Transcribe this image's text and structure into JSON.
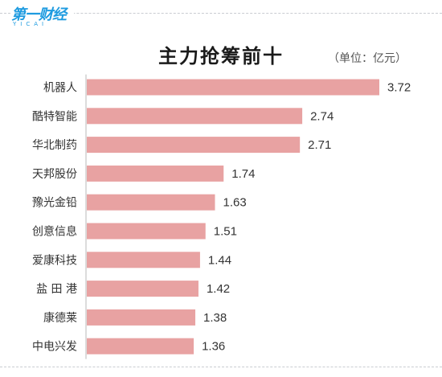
{
  "logo": {
    "mark": "第一财经",
    "sub": "YICAI"
  },
  "chart_data": {
    "type": "bar",
    "orientation": "horizontal",
    "title": "主力抢筹前十",
    "unit": "（单位：亿元）",
    "categories": [
      "机器人",
      "酷特智能",
      "华北制药",
      "天邦股份",
      "豫光金铅",
      "创意信息",
      "爱康科技",
      "盐 田 港",
      "康德莱",
      "中电兴发"
    ],
    "values": [
      3.72,
      2.74,
      2.71,
      1.74,
      1.63,
      1.51,
      1.44,
      1.42,
      1.38,
      1.36
    ],
    "value_labels": [
      "3.72",
      "2.74",
      "2.71",
      "1.74",
      "1.63",
      "1.51",
      "1.44",
      "1.42",
      "1.38",
      "1.36"
    ],
    "bar_color": "#e8a2a2",
    "axis_color": "#b8b8b8",
    "xlim": [
      0,
      3.72
    ]
  }
}
